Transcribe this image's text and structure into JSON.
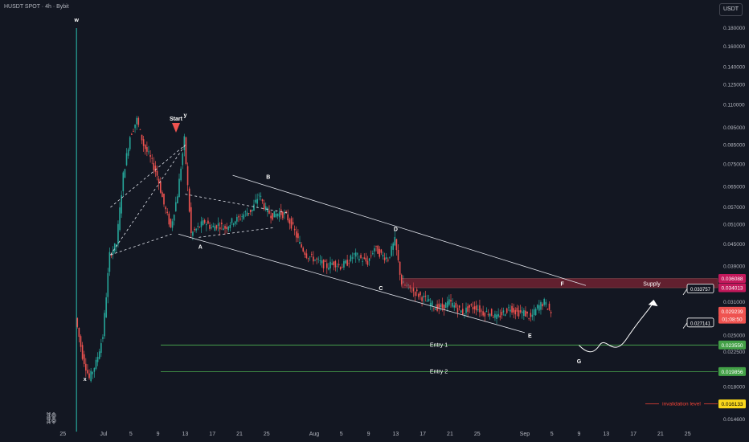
{
  "header": {
    "symbol_line": "HUSDT SPOT · 4h · Bybit",
    "currency": "USDT"
  },
  "colors": {
    "background": "#131722",
    "up": "#26a69a",
    "down": "#ef5350",
    "supply_zone": "#a3283a",
    "entry_line": "#4caf50",
    "invalidation": "#f44336"
  },
  "icons": {
    "logo": "tradingview-logo-icon"
  },
  "chart_data": {
    "type": "candlestick",
    "ylim": [
      0.0135,
      0.215
    ],
    "scale": "log",
    "y_ticks": [
      "0.180000",
      "0.160000",
      "0.140000",
      "0.125000",
      "0.110000",
      "0.095000",
      "0.085000",
      "0.075000",
      "0.065000",
      "0.057000",
      "0.051000",
      "0.045000",
      "0.039000",
      "0.031000",
      "0.025000",
      "0.022500",
      "0.018000",
      "0.014600"
    ],
    "y_tick_values": [
      0.18,
      0.16,
      0.14,
      0.125,
      0.11,
      0.095,
      0.085,
      0.075,
      0.065,
      0.057,
      0.051,
      0.045,
      0.039,
      0.031,
      0.025,
      0.0225,
      0.018,
      0.0146
    ],
    "x_ticks": [
      "25",
      "Jul",
      "5",
      "9",
      "13",
      "17",
      "21",
      "25",
      "Aug",
      "5",
      "9",
      "13",
      "17",
      "21",
      "25",
      "Sep",
      "5",
      "9",
      "13",
      "17",
      "21",
      "25"
    ],
    "x_tick_days": [
      -6,
      0,
      4,
      8,
      12,
      16,
      20,
      24,
      31,
      35,
      39,
      43,
      47,
      51,
      55,
      62,
      66,
      70,
      74,
      78,
      82,
      86
    ],
    "date_ref": "Jul 1",
    "price_path": [
      [
        -4,
        0.18
      ],
      [
        -4,
        0.028
      ],
      [
        -3,
        0.022
      ],
      [
        -2,
        0.019
      ],
      [
        -1,
        0.021
      ],
      [
        0,
        0.025
      ],
      [
        1,
        0.042
      ],
      [
        2,
        0.045
      ],
      [
        3,
        0.07
      ],
      [
        4,
        0.09
      ],
      [
        5,
        0.1
      ],
      [
        6,
        0.085
      ],
      [
        7,
        0.078
      ],
      [
        8,
        0.07
      ],
      [
        9,
        0.058
      ],
      [
        10,
        0.05
      ],
      [
        11,
        0.062
      ],
      [
        12,
        0.088
      ],
      [
        13,
        0.048
      ],
      [
        14,
        0.05
      ],
      [
        15,
        0.052
      ],
      [
        16,
        0.05
      ],
      [
        17,
        0.051
      ],
      [
        18,
        0.05
      ],
      [
        19,
        0.052
      ],
      [
        20,
        0.053
      ],
      [
        21,
        0.055
      ],
      [
        22,
        0.056
      ],
      [
        23,
        0.062
      ],
      [
        24,
        0.056
      ],
      [
        25,
        0.054
      ],
      [
        26,
        0.055
      ],
      [
        27,
        0.054
      ],
      [
        28,
        0.05
      ],
      [
        29,
        0.045
      ],
      [
        30,
        0.042
      ],
      [
        31,
        0.041
      ],
      [
        32,
        0.04
      ],
      [
        33,
        0.039
      ],
      [
        34,
        0.04
      ],
      [
        35,
        0.039
      ],
      [
        36,
        0.04
      ],
      [
        37,
        0.042
      ],
      [
        38,
        0.041
      ],
      [
        39,
        0.04
      ],
      [
        40,
        0.044
      ],
      [
        41,
        0.042
      ],
      [
        42,
        0.041
      ],
      [
        43,
        0.046
      ],
      [
        44,
        0.035
      ],
      [
        45,
        0.034
      ],
      [
        46,
        0.033
      ],
      [
        47,
        0.032
      ],
      [
        48,
        0.031
      ],
      [
        49,
        0.03
      ],
      [
        50,
        0.03
      ],
      [
        51,
        0.031
      ],
      [
        52,
        0.03
      ],
      [
        53,
        0.029
      ],
      [
        54,
        0.03
      ],
      [
        55,
        0.03
      ],
      [
        56,
        0.029
      ],
      [
        57,
        0.029
      ],
      [
        58,
        0.028
      ],
      [
        59,
        0.029
      ],
      [
        60,
        0.03
      ],
      [
        61,
        0.029
      ],
      [
        62,
        0.029
      ],
      [
        63,
        0.028
      ],
      [
        64,
        0.03
      ],
      [
        65,
        0.031
      ],
      [
        66,
        0.029
      ]
    ],
    "points": [
      {
        "label": "w",
        "day": -4,
        "price": 0.18
      },
      {
        "label": "x",
        "day": -3,
        "price": 0.0195
      },
      {
        "label": "y",
        "day": 12,
        "price": 0.088
      },
      {
        "label": "A",
        "day": 14,
        "price": 0.047
      },
      {
        "label": "B",
        "day": 24,
        "price": 0.065
      },
      {
        "label": "C",
        "day": 42,
        "price": 0.036
      },
      {
        "label": "D",
        "day": 43,
        "price": 0.047
      },
      {
        "label": "E",
        "day": 63,
        "price": 0.026
      },
      {
        "label": "F",
        "day": 68,
        "price": 0.0345
      },
      {
        "label": "G",
        "day": 70,
        "price": 0.0225
      }
    ],
    "annotations": {
      "start": "Start",
      "supply": "Supply",
      "entry1": "Entry 1",
      "entry2": "Entry 2",
      "invalidation": "invalidation level"
    },
    "levels": {
      "supply_top": 0.036088,
      "supply_bottom": 0.034013,
      "current": 0.029239,
      "entry1": 0.02355,
      "entry2": 0.019856,
      "invalidation": 0.016133
    },
    "price_labels": [
      {
        "text": "0.036088",
        "value": 0.036088,
        "bg": "#c2185b",
        "fg": "#ffffff"
      },
      {
        "text": "0.034013",
        "value": 0.034013,
        "bg": "#c2185b",
        "fg": "#ffffff"
      },
      {
        "text": "0.029239",
        "value": 0.029239,
        "bg": "#ef5350",
        "fg": "#ffffff"
      },
      {
        "text": "01:08:50",
        "value": 0.0278,
        "bg": "#ef5350",
        "fg": "#ffffff"
      },
      {
        "text": "0.023550",
        "value": 0.02355,
        "bg": "#43a047",
        "fg": "#ffffff"
      },
      {
        "text": "0.019856",
        "value": 0.019856,
        "bg": "#43a047",
        "fg": "#ffffff"
      },
      {
        "text": "0.016133",
        "value": 0.016133,
        "bg": "#f9d71c",
        "fg": "#000000"
      }
    ],
    "callouts": [
      {
        "text": "0.033757",
        "value": 0.033757
      },
      {
        "text": "0.027141",
        "value": 0.027141
      }
    ],
    "grid": false
  }
}
